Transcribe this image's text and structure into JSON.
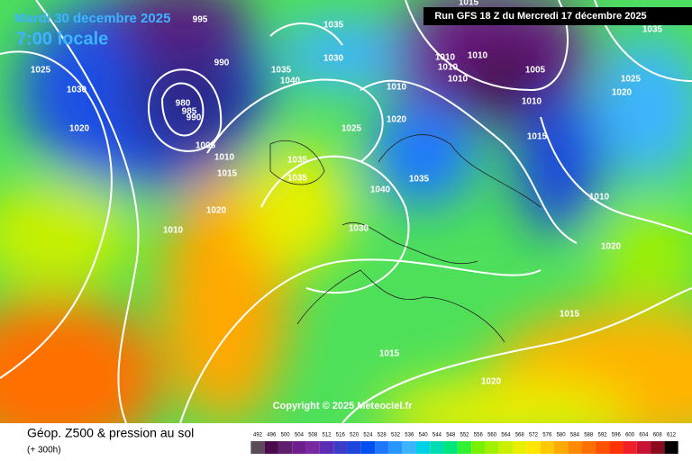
{
  "header": {
    "date": "Mardi 30 decembre 2025",
    "time": "7:00 locale",
    "run": "Run GFS 18 Z du Mercredi 17 décembre 2025"
  },
  "copyright": "Copyright © 2025 Meteociel.fr",
  "footer": {
    "title": "Géop. Z500 & pression au sol",
    "lead": "(+ 300h)"
  },
  "legend": {
    "values": [
      492,
      496,
      500,
      504,
      508,
      512,
      516,
      520,
      524,
      528,
      532,
      536,
      540,
      544,
      548,
      552,
      556,
      560,
      564,
      568,
      572,
      576,
      580,
      584,
      588,
      592,
      596,
      600,
      604,
      608,
      612
    ],
    "colors": [
      "#5a4a5a",
      "#4b0a4b",
      "#5f1e6e",
      "#6e1e8c",
      "#7828a0",
      "#5a2db4",
      "#3c3cc8",
      "#1e46dc",
      "#0050f0",
      "#1e78ff",
      "#2896ff",
      "#3cb4ff",
      "#00d2e6",
      "#00dcb4",
      "#00e678",
      "#32f032",
      "#78f000",
      "#a0f000",
      "#c8f000",
      "#e6f000",
      "#ffe600",
      "#ffc800",
      "#ffaa00",
      "#ff8c00",
      "#ff6e00",
      "#ff5000",
      "#ff3200",
      "#f01e28",
      "#c81432",
      "#8c0a1e",
      "#000000"
    ]
  },
  "isobars": [
    995,
    1035,
    1025,
    1030,
    1020,
    990,
    1035,
    1040,
    1030,
    1005,
    1010,
    1015,
    1020,
    1010,
    1035,
    1035,
    1025,
    1020,
    1010,
    1040,
    1035,
    1030,
    1010,
    1010,
    1010,
    1010,
    1005,
    1010,
    1015,
    1025,
    1020,
    1010,
    1020,
    1015,
    1015,
    1020,
    1035,
    980,
    985,
    990,
    1015
  ]
}
